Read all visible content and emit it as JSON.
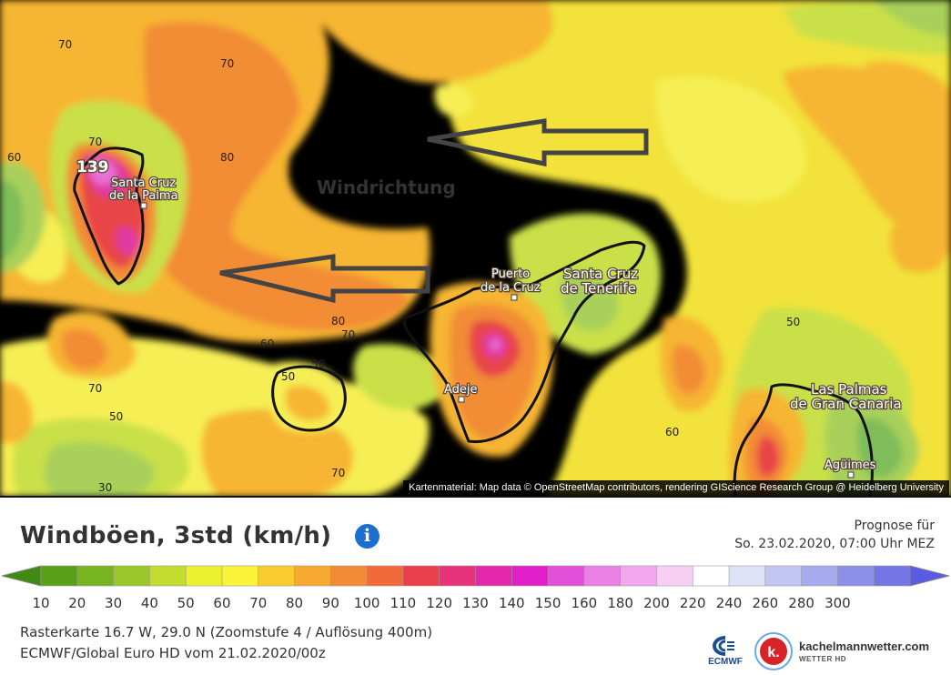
{
  "map": {
    "colors": {
      "background": "#f7d032",
      "yellow": "#f2e23a",
      "pale_yellow": "#f6ee55",
      "light_orange": "#f6b532",
      "orange": "#f28c36",
      "dark_orange": "#ee6a3c",
      "red": "#e84446",
      "magenta": "#e03aa0",
      "pink": "#ea6fd6",
      "lime": "#c9e04a",
      "green": "#a8d05a",
      "dark_green": "#7fbd5a",
      "coast": "#111111"
    },
    "direction_label": "Windrichtung",
    "places": {
      "santa_cruz_palma": [
        "Santa Cruz",
        "de la Palma"
      ],
      "puerto_cruz": [
        "Puerto",
        "de la Cruz"
      ],
      "santa_cruz_tenerife": [
        "Santa Cruz",
        "de Tenerife"
      ],
      "adeje": "Adeje",
      "las_palmas": [
        "Las Palmas",
        "de Gran Canaria"
      ],
      "aguimes": "Agüimes"
    },
    "max_value": "139",
    "contour_labels": [
      "70",
      "70",
      "60",
      "70",
      "80",
      "80",
      "70",
      "60",
      "50",
      "50",
      "70",
      "50",
      "30",
      "70",
      "60",
      "50"
    ],
    "attribution": "Kartenmaterial: Map data © OpenStreetMap contributors, rendering GIScience Research Group @ Heidelberg University"
  },
  "legend": {
    "title": "Windböen, 3std (km/h)",
    "info_icon": "info-icon",
    "forecast_label": "Prognose für",
    "forecast_date": "So. 23.02.2020, 07:00 Uhr MEZ",
    "scale_ticks": [
      "10",
      "20",
      "30",
      "40",
      "50",
      "60",
      "70",
      "80",
      "90",
      "100",
      "110",
      "120",
      "130",
      "140",
      "150",
      "160",
      "180",
      "200",
      "220",
      "240",
      "260",
      "280",
      "300"
    ],
    "scale_colors": [
      "#5aa017",
      "#78b41f",
      "#9ac82a",
      "#c2dc2f",
      "#ecf02f",
      "#fbf33a",
      "#f7cc2c",
      "#f6a930",
      "#f38a36",
      "#f26a3a",
      "#ec3f4e",
      "#e8327a",
      "#e427a8",
      "#e01fc8",
      "#e24fd9",
      "#ea80e3",
      "#f1a8ec",
      "#f6d0f3",
      "#ffffff",
      "#dfe2f6",
      "#c2c6f0",
      "#a7aaec",
      "#8c8fe8",
      "#7476e6"
    ],
    "scale_left_color": "#3f8a12",
    "scale_right_color": "#5a5be2",
    "raster_info": "Rasterkarte 16.7 W, 29.0 N  (Zoomstufe 4 / Auflösung 400m)",
    "model_info": "ECMWF/Global Euro HD vom 21.02.2020/00z"
  },
  "logos": {
    "ecmwf": "ECMWF",
    "kachel_letter": "k.",
    "kachel_name": "kachelmannwetter.com",
    "kachel_sub": "WETTER HD"
  }
}
